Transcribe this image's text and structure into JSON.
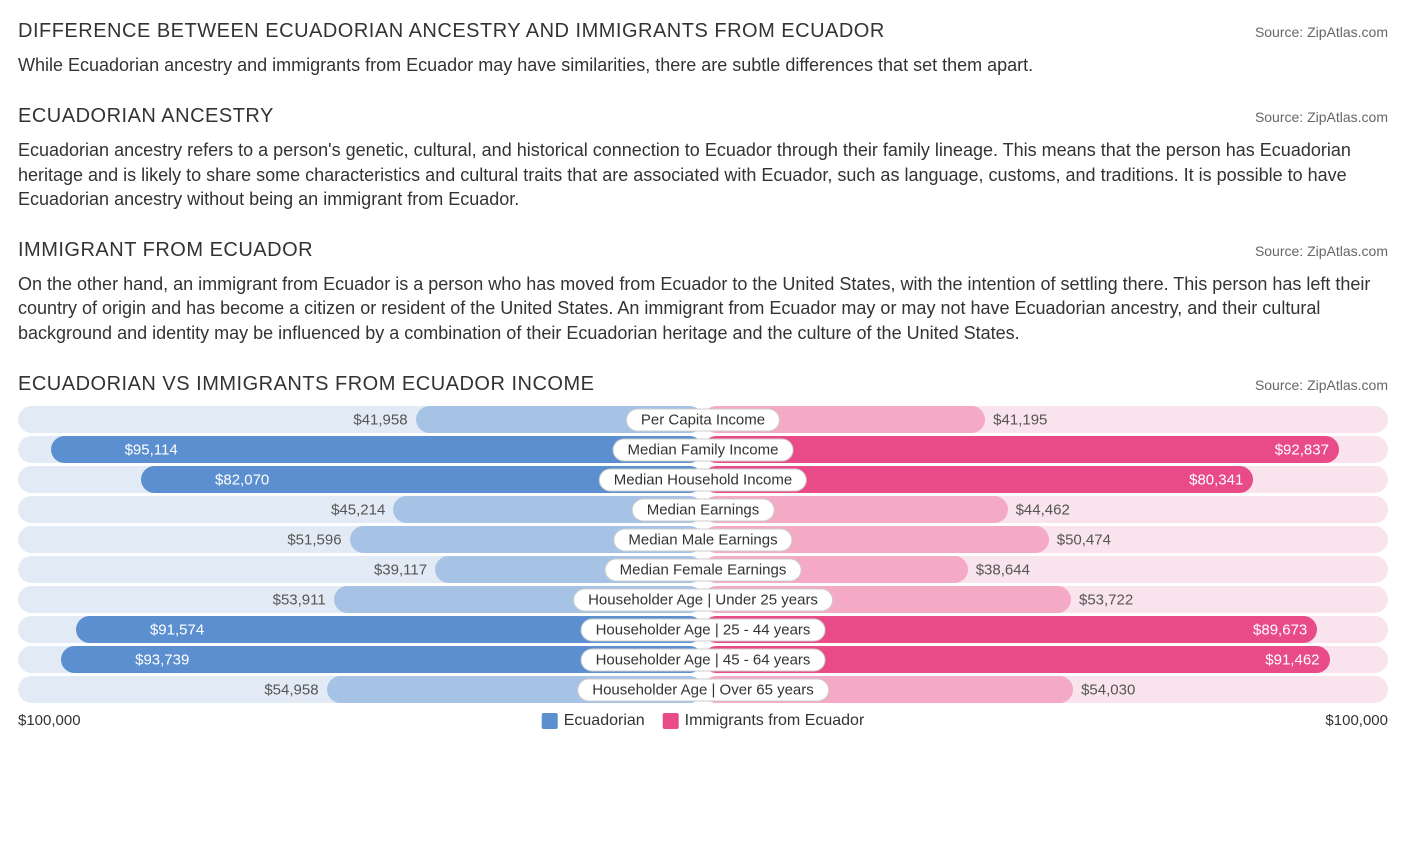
{
  "main": {
    "title": "DIFFERENCE BETWEEN ECUADORIAN ANCESTRY AND IMMIGRANTS FROM ECUADOR",
    "source": "Source: ZipAtlas.com",
    "intro": "While Ecuadorian ancestry and immigrants from Ecuador may have similarities, there are subtle differences that set them apart."
  },
  "section1": {
    "title": "ECUADORIAN ANCESTRY",
    "source": "Source: ZipAtlas.com",
    "body": "Ecuadorian ancestry refers to a person's genetic, cultural, and historical connection to Ecuador through their family lineage. This means that the person has Ecuadorian heritage and is likely to share some characteristics and cultural traits that are associated with Ecuador, such as language, customs, and traditions. It is possible to have Ecuadorian ancestry without being an immigrant from Ecuador."
  },
  "section2": {
    "title": "IMMIGRANT FROM ECUADOR",
    "source": "Source: ZipAtlas.com",
    "body": "On the other hand, an immigrant from Ecuador is a person who has moved from Ecuador to the United States, with the intention of settling there. This person has left their country of origin and has become a citizen or resident of the United States. An immigrant from Ecuador may or may not have Ecuadorian ancestry, and their cultural background and identity may be influenced by a combination of their Ecuadorian heritage and the culture of the United States."
  },
  "chart": {
    "title": "ECUADORIAN VS IMMIGRANTS FROM ECUADOR INCOME",
    "source": "Source: ZipAtlas.com",
    "type": "diverging-bar",
    "max_value": 100000,
    "axis_left_label": "$100,000",
    "axis_right_label": "$100,000",
    "colors": {
      "left_track": "#e2ebf5",
      "left_fill_light": "#a6c3e6",
      "left_fill_dark": "#5b8fd0",
      "right_track": "#f9e3ec",
      "right_fill_light": "#f4a9c4",
      "right_fill_dark": "#e84b87",
      "label_text": "#333333",
      "value_on_bar": "#ffffff",
      "value_off_bar": "#555555"
    },
    "legend": {
      "left": "Ecuadorian",
      "right": "Immigrants from Ecuador",
      "left_color": "#5b8fd0",
      "right_color": "#e84b87"
    },
    "rows": [
      {
        "label": "Per Capita Income",
        "left_value": 41958,
        "left_display": "$41,958",
        "right_value": 41195,
        "right_display": "$41,195",
        "shade": "light"
      },
      {
        "label": "Median Family Income",
        "left_value": 95114,
        "left_display": "$95,114",
        "right_value": 92837,
        "right_display": "$92,837",
        "shade": "dark"
      },
      {
        "label": "Median Household Income",
        "left_value": 82070,
        "left_display": "$82,070",
        "right_value": 80341,
        "right_display": "$80,341",
        "shade": "dark"
      },
      {
        "label": "Median Earnings",
        "left_value": 45214,
        "left_display": "$45,214",
        "right_value": 44462,
        "right_display": "$44,462",
        "shade": "light"
      },
      {
        "label": "Median Male Earnings",
        "left_value": 51596,
        "left_display": "$51,596",
        "right_value": 50474,
        "right_display": "$50,474",
        "shade": "light"
      },
      {
        "label": "Median Female Earnings",
        "left_value": 39117,
        "left_display": "$39,117",
        "right_value": 38644,
        "right_display": "$38,644",
        "shade": "light"
      },
      {
        "label": "Householder Age | Under 25 years",
        "left_value": 53911,
        "left_display": "$53,911",
        "right_value": 53722,
        "right_display": "$53,722",
        "shade": "light"
      },
      {
        "label": "Householder Age | 25 - 44 years",
        "left_value": 91574,
        "left_display": "$91,574",
        "right_value": 89673,
        "right_display": "$89,673",
        "shade": "dark"
      },
      {
        "label": "Householder Age | 45 - 64 years",
        "left_value": 93739,
        "left_display": "$93,739",
        "right_value": 91462,
        "right_display": "$91,462",
        "shade": "dark"
      },
      {
        "label": "Householder Age | Over 65 years",
        "left_value": 54958,
        "left_display": "$54,958",
        "right_value": 54030,
        "right_display": "$54,030",
        "shade": "light"
      }
    ]
  }
}
